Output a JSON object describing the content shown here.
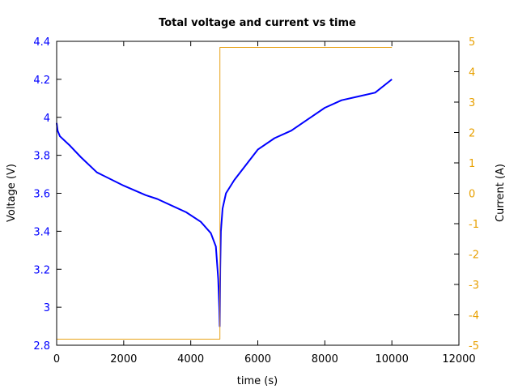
{
  "chart_data": {
    "type": "line",
    "title": "Total voltage and current vs time",
    "xlabel": "time (s)",
    "ylabel": "Voltage (V)",
    "y2label": "Current (A)",
    "xlim": [
      0,
      12000
    ],
    "ylim": [
      2.8,
      4.4
    ],
    "y2lim": [
      -5,
      5
    ],
    "xticks": [
      "0",
      "2000",
      "4000",
      "6000",
      "8000",
      "10000",
      "12000"
    ],
    "xtick_values": [
      0,
      2000,
      4000,
      6000,
      8000,
      10000,
      12000
    ],
    "yticks": [
      "2.8",
      "3",
      "3.2",
      "3.4",
      "3.6",
      "3.8",
      "4",
      "4.2",
      "4.4"
    ],
    "ytick_values": [
      2.8,
      3.0,
      3.2,
      3.4,
      3.6,
      3.8,
      4.0,
      4.2,
      4.4
    ],
    "y2ticks": [
      "-5",
      "-4",
      "-3",
      "-2",
      "-1",
      "0",
      "1",
      "2",
      "3",
      "4",
      "5"
    ],
    "y2tick_values": [
      -5,
      -4,
      -3,
      -2,
      -1,
      0,
      1,
      2,
      3,
      4,
      5
    ],
    "grid": false,
    "series": [
      {
        "name": "Voltage",
        "axis": "left",
        "color": "#0000ff",
        "x": [
          0,
          30,
          100,
          400,
          725,
          1200,
          2000,
          2657,
          3000,
          3864,
          4300,
          4600,
          4750,
          4820,
          4850,
          4865,
          4880,
          4900,
          4950,
          5050,
          5300,
          6000,
          6500,
          7000,
          7500,
          8000,
          8500,
          9000,
          9500,
          10000
        ],
        "y": [
          3.97,
          3.93,
          3.9,
          3.85,
          3.79,
          3.71,
          3.64,
          3.59,
          3.57,
          3.5,
          3.45,
          3.39,
          3.32,
          3.15,
          3.0,
          2.9,
          3.2,
          3.4,
          3.52,
          3.6,
          3.67,
          3.83,
          3.89,
          3.93,
          3.99,
          4.05,
          4.09,
          4.11,
          4.13,
          4.2
        ]
      },
      {
        "name": "Current",
        "axis": "right",
        "color": "#e8a317",
        "x": [
          0,
          4870,
          4870,
          10000
        ],
        "y": [
          -4.8,
          -4.8,
          4.8,
          4.8
        ]
      }
    ],
    "colors": {
      "left_axis": "#0000ff",
      "right_axis": "#e8a000",
      "axis": "#000000"
    }
  }
}
